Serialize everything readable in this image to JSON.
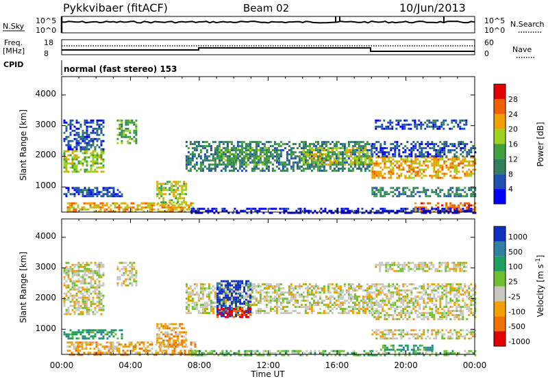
{
  "header": {
    "station": "Pykkvibaer (fitACF)",
    "beam": "Beam 02",
    "date": "10/Jun/2013"
  },
  "labels": {
    "nsky": "N.Sky",
    "nsearch": "N.Search",
    "freq": "Freq.",
    "mhz": "[MHz]",
    "nave": "Nave",
    "cpid": "CPID",
    "cpid_value": "normal (fast stereo) 153",
    "xlabel": "Time UT"
  },
  "noise_panel": {
    "left_ticks": [
      "10^5",
      "10^0"
    ],
    "right_ticks": [
      "10^5",
      "10^0"
    ]
  },
  "freq_panel": {
    "left_ticks": [
      "18",
      "8"
    ],
    "right_ticks": [
      "60",
      "0"
    ]
  },
  "x_ticks": [
    "00:00",
    "04:00",
    "08:00",
    "12:00",
    "16:00",
    "20:00",
    "00:00"
  ],
  "chart_data": [
    {
      "type": "heatmap",
      "name": "power",
      "xlabel": "Time UT",
      "ylabel": "Slant Range [km]",
      "xlim": [
        0,
        24
      ],
      "ylim": [
        180,
        4600
      ],
      "yticks": [
        "1000",
        "2000",
        "3000",
        "4000"
      ],
      "colorbar_label": "Power [dB]",
      "colorbar_ticks": [
        "4",
        "8",
        "12",
        "16",
        "20",
        "24",
        "28"
      ],
      "colors": [
        "#0000ff",
        "#2050b0",
        "#308060",
        "#40a040",
        "#a0d020",
        "#f0a000",
        "#f06000",
        "#e00000"
      ],
      "bands": [
        {
          "t0": 0.1,
          "t1": 2.4,
          "r0": 1500,
          "r1": 2200,
          "level": 4
        },
        {
          "t0": 0.1,
          "t1": 2.4,
          "r0": 2200,
          "r1": 3200,
          "level": 1
        },
        {
          "t0": 3.2,
          "t1": 4.3,
          "r0": 2400,
          "r1": 3200,
          "level": 3
        },
        {
          "t0": 0.1,
          "t1": 3.5,
          "r0": 700,
          "r1": 1000,
          "level": 1
        },
        {
          "t0": 0.3,
          "t1": 7.8,
          "r0": 180,
          "r1": 500,
          "level": 5
        },
        {
          "t0": 5.5,
          "t1": 7.2,
          "r0": 400,
          "r1": 1200,
          "level": 4
        },
        {
          "t0": 7.2,
          "t1": 18.0,
          "r0": 1500,
          "r1": 2500,
          "level": 2
        },
        {
          "t0": 9.0,
          "t1": 12.0,
          "r0": 1700,
          "r1": 2300,
          "level": 3
        },
        {
          "t0": 14.0,
          "t1": 18.0,
          "r0": 1700,
          "r1": 2300,
          "level": 4
        },
        {
          "t0": 18.0,
          "t1": 24.0,
          "r0": 1300,
          "r1": 2000,
          "level": 5
        },
        {
          "t0": 18.0,
          "t1": 24.0,
          "r0": 2000,
          "r1": 2500,
          "level": 1
        },
        {
          "t0": 18.2,
          "t1": 23.5,
          "r0": 2900,
          "r1": 3200,
          "level": 1
        },
        {
          "t0": 18.0,
          "t1": 24.0,
          "r0": 700,
          "r1": 1000,
          "level": 2
        },
        {
          "t0": 20.5,
          "t1": 24.0,
          "r0": 180,
          "r1": 500,
          "level": 6
        },
        {
          "t0": 7.5,
          "t1": 24.0,
          "r0": 180,
          "r1": 320,
          "level": 0
        }
      ]
    },
    {
      "type": "heatmap",
      "name": "velocity",
      "xlabel": "Time UT",
      "ylabel": "Slant Range [km]",
      "xlim": [
        0,
        24
      ],
      "ylim": [
        180,
        4600
      ],
      "yticks": [
        "1000",
        "2000",
        "3000",
        "4000"
      ],
      "colorbar_label": "Velocity [m s^-1]",
      "colorbar_ticks": [
        "1000",
        "500",
        "100",
        "25",
        "-25",
        "-100",
        "-500",
        "-1000"
      ],
      "colors": [
        "#1030c0",
        "#3080a0",
        "#20a060",
        "#70c030",
        "#c8c8c0",
        "#f0a000",
        "#f07000",
        "#e00000"
      ],
      "bands": [
        {
          "t0": 0.1,
          "t1": 2.4,
          "r0": 1500,
          "r1": 3200,
          "level": 4
        },
        {
          "t0": 3.2,
          "t1": 4.3,
          "r0": 2400,
          "r1": 3200,
          "level": 4
        },
        {
          "t0": 0.1,
          "t1": 3.5,
          "r0": 700,
          "r1": 1000,
          "level": 2
        },
        {
          "t0": 0.3,
          "t1": 7.8,
          "r0": 180,
          "r1": 600,
          "level": 5
        },
        {
          "t0": 5.5,
          "t1": 7.2,
          "r0": 400,
          "r1": 1200,
          "level": 5
        },
        {
          "t0": 7.2,
          "t1": 18.0,
          "r0": 1500,
          "r1": 2500,
          "level": 4
        },
        {
          "t0": 9.0,
          "t1": 11.0,
          "r0": 1400,
          "r1": 2600,
          "level": 0
        },
        {
          "t0": 9.0,
          "t1": 11.0,
          "r0": 1400,
          "r1": 1700,
          "level": 7
        },
        {
          "t0": 18.0,
          "t1": 24.0,
          "r0": 1300,
          "r1": 2500,
          "level": 4
        },
        {
          "t0": 18.2,
          "t1": 23.5,
          "r0": 2900,
          "r1": 3200,
          "level": 4
        },
        {
          "t0": 18.0,
          "t1": 24.0,
          "r0": 700,
          "r1": 1000,
          "level": 4
        },
        {
          "t0": 7.5,
          "t1": 24.0,
          "r0": 180,
          "r1": 320,
          "level": 3
        },
        {
          "t0": 18.5,
          "t1": 22.0,
          "r0": 320,
          "r1": 500,
          "level": 2
        }
      ]
    }
  ]
}
